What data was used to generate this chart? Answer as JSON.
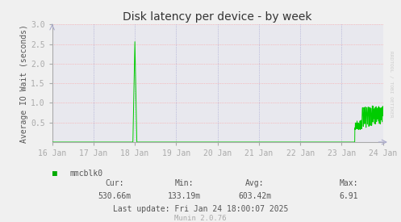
{
  "title": "Disk latency per device - by week",
  "ylabel": "Average IO Wait (seconds)",
  "ylim": [
    0,
    3.0
  ],
  "yticks": [
    0.5,
    1.0,
    1.5,
    2.0,
    2.5,
    3.0
  ],
  "x_tick_labels": [
    "16 Jan",
    "17 Jan",
    "18 Jan",
    "19 Jan",
    "20 Jan",
    "21 Jan",
    "22 Jan",
    "23 Jan",
    "24 Jan"
  ],
  "line_color": "#00cc00",
  "bg_color": "#f0f0f0",
  "plot_bg_color": "#e8e8ee",
  "grid_h_color": "#ff9999",
  "grid_v_color": "#9999cc",
  "title_color": "#333333",
  "legend_label": "mmcblk0",
  "legend_color": "#00aa00",
  "cur_label": "Cur:",
  "cur_value": "530.66m",
  "min_label": "Min:",
  "min_value": "133.19m",
  "avg_label": "Avg:",
  "avg_value": "603.42m",
  "max_label": "Max:",
  "max_value": "6.91",
  "last_update": "Last update: Fri Jan 24 18:00:07 2025",
  "munin_version": "Munin 2.0.76",
  "rrdtool_text": "RRDTOOL / TOBI OETIKER",
  "axis_color": "#aaaaaa",
  "tick_color": "#555555"
}
